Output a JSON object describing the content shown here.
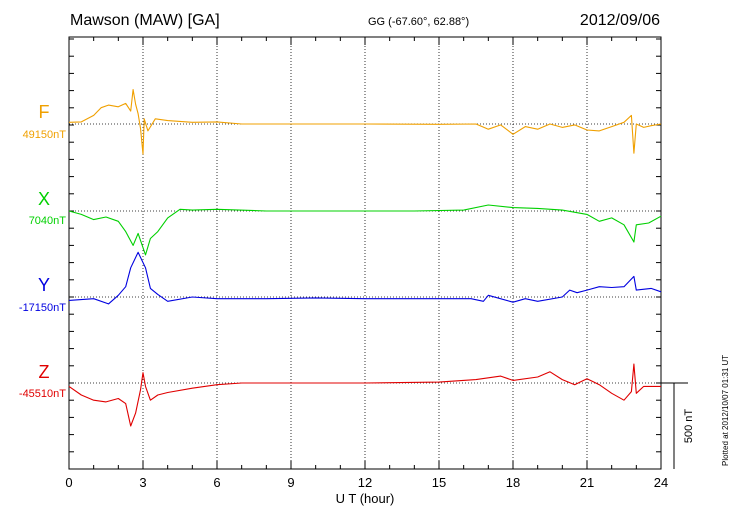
{
  "header": {
    "title": "Mawson (MAW)  [GA]",
    "coords": "GG (-67.60°,  62.88°)",
    "date": "2012/09/06"
  },
  "footer_note": "Plotted at 2012/10/07 01:31  UT",
  "colors": {
    "F": "#f0a000",
    "X": "#00d000",
    "Y": "#0000e0",
    "Z": "#e00000"
  },
  "chart_data": {
    "type": "line",
    "xlabel": "U T (hour)",
    "xlim": [
      0,
      24
    ],
    "x_ticks": [
      "0",
      "3",
      "6",
      "9",
      "12",
      "15",
      "18",
      "21",
      "24"
    ],
    "scale_bar_label": "500 nT",
    "scale_bar_nT": 500,
    "series": [
      {
        "name": "F",
        "baseline_label": "49150nT",
        "baseline_nT": 49150,
        "points": [
          [
            0,
            10
          ],
          [
            0.5,
            12
          ],
          [
            1,
            50
          ],
          [
            1.3,
            95
          ],
          [
            1.6,
            110
          ],
          [
            2.0,
            100
          ],
          [
            2.3,
            120
          ],
          [
            2.5,
            75
          ],
          [
            2.6,
            200
          ],
          [
            2.7,
            115
          ],
          [
            2.8,
            60
          ],
          [
            2.9,
            -25
          ],
          [
            3.0,
            -175
          ],
          [
            3.05,
            30
          ],
          [
            3.2,
            -40
          ],
          [
            3.5,
            30
          ],
          [
            4,
            20
          ],
          [
            5,
            10
          ],
          [
            6,
            12
          ],
          [
            7,
            0
          ],
          [
            9,
            0
          ],
          [
            12,
            0
          ],
          [
            15,
            -2
          ],
          [
            16.5,
            0
          ],
          [
            17,
            -30
          ],
          [
            17.5,
            -5
          ],
          [
            18,
            -60
          ],
          [
            18.5,
            -15
          ],
          [
            19,
            -30
          ],
          [
            19.5,
            0
          ],
          [
            20,
            -20
          ],
          [
            20.5,
            -5
          ],
          [
            21,
            -35
          ],
          [
            21.5,
            -40
          ],
          [
            22,
            -15
          ],
          [
            22.5,
            10
          ],
          [
            22.8,
            50
          ],
          [
            22.9,
            -170
          ],
          [
            23,
            0
          ],
          [
            23.3,
            -20
          ],
          [
            23.6,
            -10
          ],
          [
            24,
            0
          ]
        ]
      },
      {
        "name": "X",
        "baseline_label": "7040nT",
        "baseline_nT": 7040,
        "points": [
          [
            0,
            0
          ],
          [
            0.5,
            -20
          ],
          [
            1,
            -50
          ],
          [
            1.5,
            -35
          ],
          [
            2,
            -60
          ],
          [
            2.3,
            -120
          ],
          [
            2.6,
            -200
          ],
          [
            2.8,
            -130
          ],
          [
            3.1,
            -255
          ],
          [
            3.3,
            -160
          ],
          [
            3.6,
            -120
          ],
          [
            4,
            -40
          ],
          [
            4.5,
            10
          ],
          [
            5,
            5
          ],
          [
            6,
            10
          ],
          [
            8,
            0
          ],
          [
            10,
            0
          ],
          [
            12,
            0
          ],
          [
            14,
            0
          ],
          [
            16,
            5
          ],
          [
            17,
            35
          ],
          [
            18,
            20
          ],
          [
            19,
            15
          ],
          [
            20,
            5
          ],
          [
            21,
            -20
          ],
          [
            21.5,
            -60
          ],
          [
            22,
            -40
          ],
          [
            22.5,
            -80
          ],
          [
            22.9,
            -180
          ],
          [
            23,
            -80
          ],
          [
            23.5,
            -70
          ],
          [
            24,
            -30
          ]
        ]
      },
      {
        "name": "Y",
        "baseline_label": "-17150nT",
        "baseline_nT": -17150,
        "points": [
          [
            0,
            -20
          ],
          [
            1,
            -10
          ],
          [
            1.6,
            -40
          ],
          [
            2,
            10
          ],
          [
            2.3,
            60
          ],
          [
            2.5,
            170
          ],
          [
            2.8,
            260
          ],
          [
            3.1,
            170
          ],
          [
            3.3,
            50
          ],
          [
            3.6,
            15
          ],
          [
            4,
            -25
          ],
          [
            5,
            0
          ],
          [
            6,
            -10
          ],
          [
            8,
            -10
          ],
          [
            10,
            -5
          ],
          [
            12,
            -10
          ],
          [
            15,
            -10
          ],
          [
            16.3,
            -10
          ],
          [
            16.8,
            -25
          ],
          [
            17,
            10
          ],
          [
            18,
            -30
          ],
          [
            18.5,
            -10
          ],
          [
            19,
            -25
          ],
          [
            20,
            0
          ],
          [
            20.3,
            40
          ],
          [
            20.6,
            25
          ],
          [
            21,
            40
          ],
          [
            21.5,
            60
          ],
          [
            22,
            55
          ],
          [
            22.5,
            60
          ],
          [
            22.9,
            120
          ],
          [
            23,
            40
          ],
          [
            23.6,
            50
          ],
          [
            24,
            30
          ]
        ]
      },
      {
        "name": "Z",
        "baseline_label": "-45510nT",
        "baseline_nT": -45510,
        "points": [
          [
            0,
            -20
          ],
          [
            0.5,
            -70
          ],
          [
            1,
            -100
          ],
          [
            1.5,
            -110
          ],
          [
            2,
            -90
          ],
          [
            2.3,
            -120
          ],
          [
            2.5,
            -250
          ],
          [
            2.7,
            -175
          ],
          [
            2.9,
            -40
          ],
          [
            3.0,
            60
          ],
          [
            3.1,
            -20
          ],
          [
            3.3,
            -100
          ],
          [
            3.6,
            -70
          ],
          [
            4,
            -55
          ],
          [
            5,
            -30
          ],
          [
            6,
            -10
          ],
          [
            7,
            0
          ],
          [
            9,
            0
          ],
          [
            12,
            0
          ],
          [
            15,
            5
          ],
          [
            16.5,
            20
          ],
          [
            17.5,
            40
          ],
          [
            18,
            15
          ],
          [
            19,
            35
          ],
          [
            19.5,
            65
          ],
          [
            20,
            20
          ],
          [
            20.5,
            -10
          ],
          [
            21,
            25
          ],
          [
            21.5,
            -10
          ],
          [
            22,
            -60
          ],
          [
            22.5,
            -100
          ],
          [
            22.8,
            -50
          ],
          [
            22.9,
            110
          ],
          [
            23,
            -60
          ],
          [
            23.3,
            -20
          ],
          [
            23.6,
            -20
          ],
          [
            24,
            -20
          ]
        ]
      }
    ]
  }
}
